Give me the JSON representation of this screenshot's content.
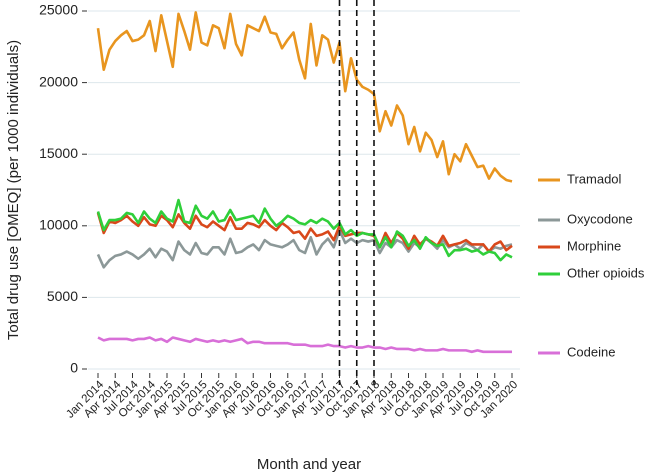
{
  "chart_data": {
    "type": "line",
    "xlabel": "Month and year",
    "ylabel": "Total drug use [OMEQ] (per 1000 individuals)",
    "categories": [
      "Jan 2014",
      null,
      null,
      "Apr 2014",
      null,
      null,
      "Jul 2014",
      null,
      null,
      "Oct 2014",
      null,
      null,
      "Jan 2015",
      null,
      null,
      "Apr 2015",
      null,
      null,
      "Jul 2015",
      null,
      null,
      "Oct 2015",
      null,
      null,
      "Jan 2016",
      null,
      null,
      "Apr 2016",
      null,
      null,
      "Jul 2016",
      null,
      null,
      "Oct 2016",
      null,
      null,
      "Jan 2017",
      null,
      null,
      "Apr 2017",
      null,
      null,
      "Jul 2017",
      null,
      null,
      "Oct 2017",
      null,
      null,
      "Jan 2018",
      null,
      null,
      "Apr 2018",
      null,
      null,
      "Jul 2018",
      null,
      null,
      "Oct 2018",
      null,
      null,
      "Jan 2019",
      null,
      null,
      "Apr 2019",
      null,
      null,
      "Jul 2019",
      null,
      null,
      "Oct 2019",
      null,
      null,
      "Jan 2020"
    ],
    "series": [
      {
        "name": "Tramadol",
        "color": "#e8951f",
        "values": [
          23800,
          20900,
          22300,
          22900,
          23300,
          23600,
          22900,
          23000,
          23300,
          24300,
          22200,
          24700,
          22900,
          21100,
          24800,
          23600,
          22300,
          24900,
          22800,
          22600,
          24000,
          23800,
          22400,
          24800,
          22700,
          21900,
          24000,
          23800,
          23600,
          24600,
          23500,
          23400,
          22400,
          23000,
          23500,
          21600,
          20300,
          24100,
          21200,
          23300,
          23000,
          21400,
          22800,
          19400,
          21700,
          20200,
          19700,
          19500,
          19200,
          16600,
          18000,
          17000,
          18400,
          17700,
          15700,
          16900,
          15200,
          16500,
          16000,
          14800,
          15900,
          13600,
          15000,
          14500,
          15700,
          14900,
          14100,
          14200,
          13300,
          14000,
          13500,
          13200,
          13100
        ]
      },
      {
        "name": "Oxycodone",
        "color": "#8c9898",
        "values": [
          8000,
          7100,
          7600,
          7900,
          8000,
          8200,
          8000,
          7700,
          8000,
          8400,
          7800,
          8400,
          8200,
          7600,
          8900,
          8300,
          8000,
          8800,
          8100,
          8000,
          8500,
          8500,
          8000,
          9100,
          8100,
          8200,
          8500,
          8700,
          8300,
          9000,
          8700,
          8600,
          8500,
          8700,
          9000,
          8300,
          8100,
          9200,
          8000,
          8700,
          9100,
          8500,
          9700,
          8800,
          9100,
          8800,
          9000,
          8900,
          9000,
          8100,
          8800,
          8500,
          9000,
          8800,
          8200,
          8800,
          8500,
          9100,
          8800,
          8400,
          9000,
          8500,
          8700,
          8400,
          8800,
          8600,
          8300,
          8700,
          8200,
          8500,
          8400,
          8600,
          8700
        ]
      },
      {
        "name": "Morphine",
        "color": "#d9481b",
        "values": [
          10900,
          9500,
          10300,
          10200,
          10400,
          10700,
          10300,
          10000,
          10600,
          10100,
          10000,
          10700,
          10400,
          9900,
          10800,
          10200,
          9800,
          10700,
          10100,
          9900,
          10300,
          10000,
          9700,
          10600,
          9800,
          9800,
          10200,
          10100,
          9900,
          10400,
          10000,
          9700,
          10200,
          9900,
          9500,
          9600,
          9100,
          9800,
          9300,
          9400,
          9600,
          9000,
          10000,
          9300,
          9400,
          9500,
          9500,
          9400,
          9300,
          8500,
          9500,
          8800,
          9500,
          9100,
          8400,
          9300,
          8700,
          9100,
          8900,
          8600,
          9300,
          8600,
          8700,
          8800,
          9000,
          8700,
          8700,
          8700,
          8200,
          8700,
          8900,
          8300,
          8600
        ]
      },
      {
        "name": "Other opioids",
        "color": "#2fcf3a",
        "values": [
          11000,
          9700,
          10400,
          10400,
          10500,
          10900,
          10800,
          10200,
          11000,
          10500,
          10200,
          11000,
          10500,
          10300,
          11800,
          10300,
          10200,
          11400,
          10700,
          10500,
          11000,
          10300,
          10400,
          11100,
          10400,
          10500,
          10600,
          10700,
          10200,
          11200,
          10500,
          10000,
          10300,
          10700,
          10500,
          10200,
          10100,
          10400,
          10200,
          10500,
          10300,
          9800,
          10200,
          9400,
          9700,
          9300,
          9500,
          9400,
          9400,
          8500,
          9200,
          8500,
          9600,
          9300,
          8600,
          9000,
          8400,
          9200,
          8800,
          8600,
          8700,
          7900,
          8300,
          8300,
          8400,
          8200,
          8300,
          8000,
          8200,
          8100,
          7600,
          8000,
          7800
        ]
      },
      {
        "name": "Codeine",
        "color": "#d86fd8",
        "values": [
          2200,
          2000,
          2100,
          2100,
          2100,
          2100,
          2000,
          2100,
          2100,
          2200,
          2000,
          2100,
          1900,
          2200,
          2100,
          2000,
          1900,
          2100,
          2000,
          1900,
          2000,
          1900,
          2000,
          1900,
          2000,
          2100,
          1800,
          1900,
          1900,
          1800,
          1800,
          1800,
          1800,
          1800,
          1700,
          1700,
          1700,
          1600,
          1600,
          1600,
          1700,
          1600,
          1600,
          1500,
          1600,
          1500,
          1500,
          1600,
          1500,
          1500,
          1400,
          1500,
          1400,
          1400,
          1400,
          1300,
          1400,
          1300,
          1300,
          1300,
          1400,
          1300,
          1300,
          1300,
          1300,
          1200,
          1300,
          1200,
          1200,
          1200,
          1200,
          1200,
          1200
        ]
      }
    ],
    "vlines": [
      "Jul 2017",
      "Oct 2017",
      "Jan 2018"
    ],
    "ylim": [
      0,
      25000
    ],
    "yticks": [
      0,
      5000,
      10000,
      15000,
      20000,
      25000
    ],
    "grid": true,
    "legend": "right"
  }
}
